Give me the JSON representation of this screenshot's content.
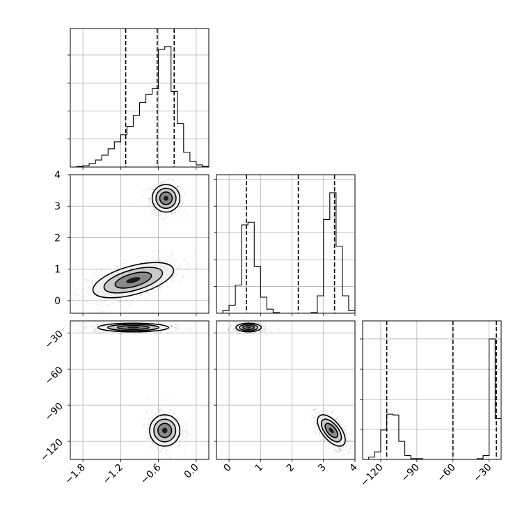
{
  "chart_data": {
    "type": "corner",
    "grid": true,
    "parameters": [
      {
        "id": "p0",
        "range": [
          -2.0,
          0.2
        ],
        "ticks": [
          -1.8,
          -1.2,
          -0.6,
          0.0
        ],
        "tick_labels": [
          "−1.8",
          "−1.2",
          "−0.6",
          "0.0"
        ]
      },
      {
        "id": "p1",
        "range": [
          -0.4,
          4.0
        ],
        "ticks": [
          0,
          1,
          2,
          3,
          4
        ],
        "tick_labels": [
          "0",
          "1",
          "2",
          "3",
          "4"
        ]
      },
      {
        "id": "p2",
        "range": [
          -135,
          -20
        ],
        "ticks": [
          -120,
          -90,
          -60,
          -30
        ],
        "tick_labels": [
          "−120",
          "−90",
          "−60",
          "−30"
        ]
      }
    ],
    "histograms": [
      {
        "param": 0,
        "quantiles": [
          -1.12,
          -0.62,
          -0.35
        ],
        "bin_edges": [
          -2.0,
          -1.9,
          -1.8,
          -1.7,
          -1.6,
          -1.5,
          -1.4,
          -1.3,
          -1.2,
          -1.1,
          -1.0,
          -0.9,
          -0.8,
          -0.7,
          -0.6,
          -0.5,
          -0.4,
          -0.3,
          -0.2,
          -0.1,
          0.0,
          0.1,
          0.2
        ],
        "counts": [
          0,
          1,
          2,
          5,
          10,
          17,
          26,
          36,
          46,
          58,
          74,
          92,
          104,
          112,
          168,
          172,
          108,
          62,
          21,
          8,
          3,
          1
        ]
      },
      {
        "param": 1,
        "quantiles": [
          0.55,
          2.2,
          3.35
        ],
        "bin_edges": [
          -0.4,
          -0.2,
          0.0,
          0.2,
          0.4,
          0.6,
          0.8,
          1.0,
          1.2,
          1.4,
          1.6,
          1.8,
          2.0,
          2.2,
          2.4,
          2.6,
          2.8,
          3.0,
          3.2,
          3.4,
          3.6,
          3.8,
          4.0
        ],
        "counts": [
          0,
          4,
          12,
          42,
          132,
          136,
          70,
          24,
          6,
          1,
          0,
          0,
          0,
          0,
          0,
          1,
          26,
          140,
          180,
          100,
          26,
          4
        ]
      },
      {
        "param": 2,
        "quantiles": [
          -115,
          -60,
          -24
        ],
        "bin_edges": [
          -135,
          -130,
          -125,
          -120,
          -115,
          -110,
          -105,
          -100,
          -95,
          -90,
          -85,
          -80,
          -75,
          -70,
          -65,
          -60,
          -55,
          -50,
          -45,
          -40,
          -35,
          -30,
          -25,
          -20
        ],
        "counts": [
          0,
          3,
          10,
          39,
          60,
          59,
          24,
          5,
          1,
          1,
          0,
          0,
          0,
          0,
          0,
          0,
          0,
          0,
          0,
          1,
          5,
          160,
          54
        ]
      }
    ],
    "pairs": [
      {
        "x_param": 0,
        "y_param": 1,
        "modes": [
          {
            "x": -0.48,
            "y": 3.25,
            "sx": 0.11,
            "sy": 0.22,
            "rho": 0.0,
            "n": 650
          },
          {
            "x": -1.0,
            "y": 0.65,
            "sx": 0.32,
            "sy": 0.28,
            "rho": 0.55,
            "n": 700
          }
        ]
      },
      {
        "x_param": 0,
        "y_param": 2,
        "modes": [
          {
            "x": -1.0,
            "y": -25.5,
            "sx": 0.28,
            "sy": 1.8,
            "rho": 0.0,
            "n": 700
          },
          {
            "x": -0.5,
            "y": -111,
            "sx": 0.12,
            "sy": 6.5,
            "rho": 0.0,
            "n": 650
          }
        ]
      },
      {
        "x_param": 1,
        "y_param": 2,
        "modes": [
          {
            "x": 0.62,
            "y": -25.5,
            "sx": 0.2,
            "sy": 1.8,
            "rho": 0.0,
            "n": 650
          },
          {
            "x": 3.25,
            "y": -111,
            "sx": 0.22,
            "sy": 6.5,
            "rho": -0.6,
            "n": 650
          }
        ]
      }
    ]
  }
}
